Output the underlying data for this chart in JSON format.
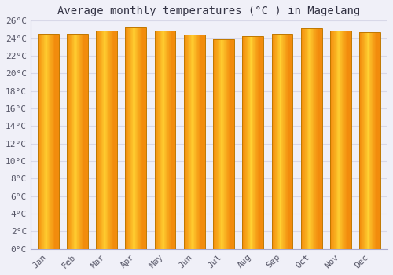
{
  "title": "Average monthly temperatures (°C ) in Magelang",
  "months": [
    "Jan",
    "Feb",
    "Mar",
    "Apr",
    "May",
    "Jun",
    "Jul",
    "Aug",
    "Sep",
    "Oct",
    "Nov",
    "Dec"
  ],
  "temperatures": [
    24.5,
    24.5,
    24.9,
    25.2,
    24.9,
    24.4,
    23.9,
    24.2,
    24.5,
    25.1,
    24.9,
    24.7
  ],
  "ylim": [
    0,
    26
  ],
  "yticks": [
    0,
    2,
    4,
    6,
    8,
    10,
    12,
    14,
    16,
    18,
    20,
    22,
    24,
    26
  ],
  "ytick_labels": [
    "0°C",
    "2°C",
    "4°C",
    "6°C",
    "8°C",
    "10°C",
    "12°C",
    "14°C",
    "16°C",
    "18°C",
    "20°C",
    "22°C",
    "24°C",
    "26°C"
  ],
  "background_color": "#f0f0f8",
  "plot_bg_color": "#f0f0f8",
  "grid_color": "#d8d8e8",
  "title_fontsize": 10,
  "tick_fontsize": 8,
  "bar_width": 0.72,
  "bar_color_center": "#FFD040",
  "bar_color_edge": "#F09000",
  "bar_edge_color": "#C07800"
}
